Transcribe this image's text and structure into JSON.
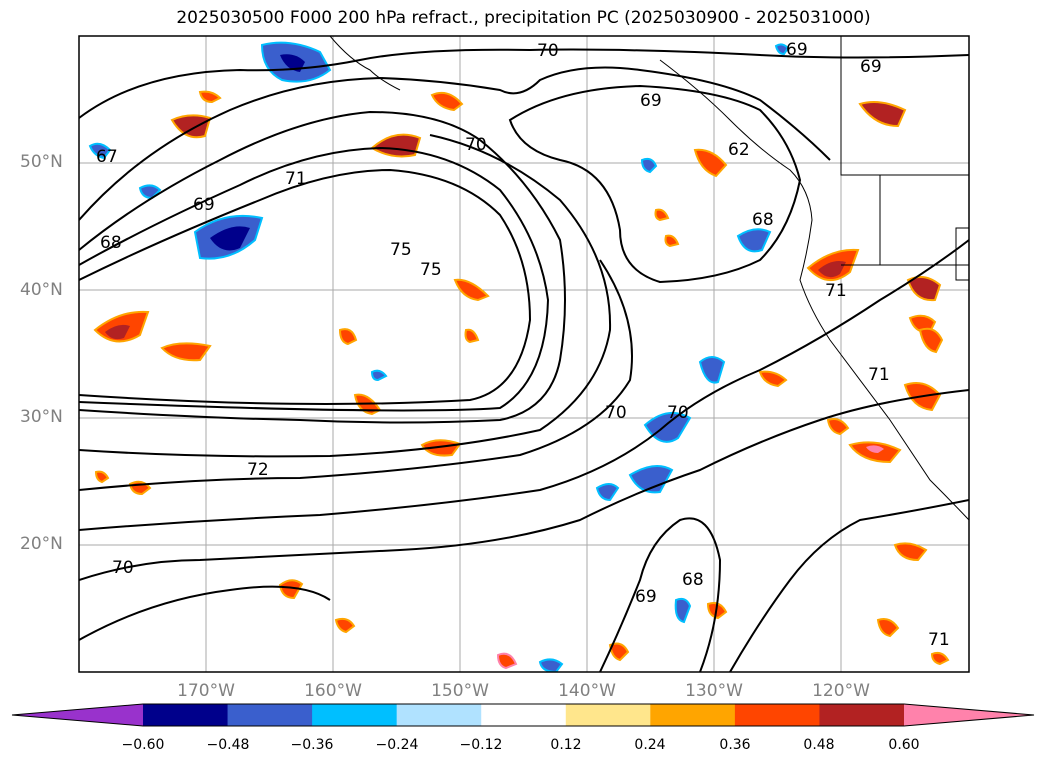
{
  "title": "2025030500 F000 200 hPa refract., precipitation PC (2025030900 - 2025031000)",
  "lat_labels": [
    "50°N",
    "40°N",
    "30°N",
    "20°N"
  ],
  "lon_labels": [
    "170°W",
    "160°W",
    "150°W",
    "140°W",
    "130°W",
    "120°W"
  ],
  "contour_labels": [
    "70",
    "69",
    "69",
    "69",
    "70",
    "67",
    "71",
    "69",
    "68",
    "62",
    "68",
    "75",
    "75",
    "71",
    "71",
    "70",
    "70",
    "72",
    "70",
    "69",
    "68",
    "71"
  ],
  "colorbar": {
    "ticks": [
      "−0.60",
      "−0.48",
      "−0.36",
      "−0.24",
      "−0.12",
      "0.12",
      "0.24",
      "0.36",
      "0.48",
      "0.60"
    ],
    "colors": [
      "#9932CC",
      "#00008B",
      "#3A5FCD",
      "#00BFFF",
      "#B0E2FF",
      "#FFFFFF",
      "#FFE68C",
      "#FFA500",
      "#FF4500",
      "#B22222",
      "#FF82AB"
    ]
  }
}
